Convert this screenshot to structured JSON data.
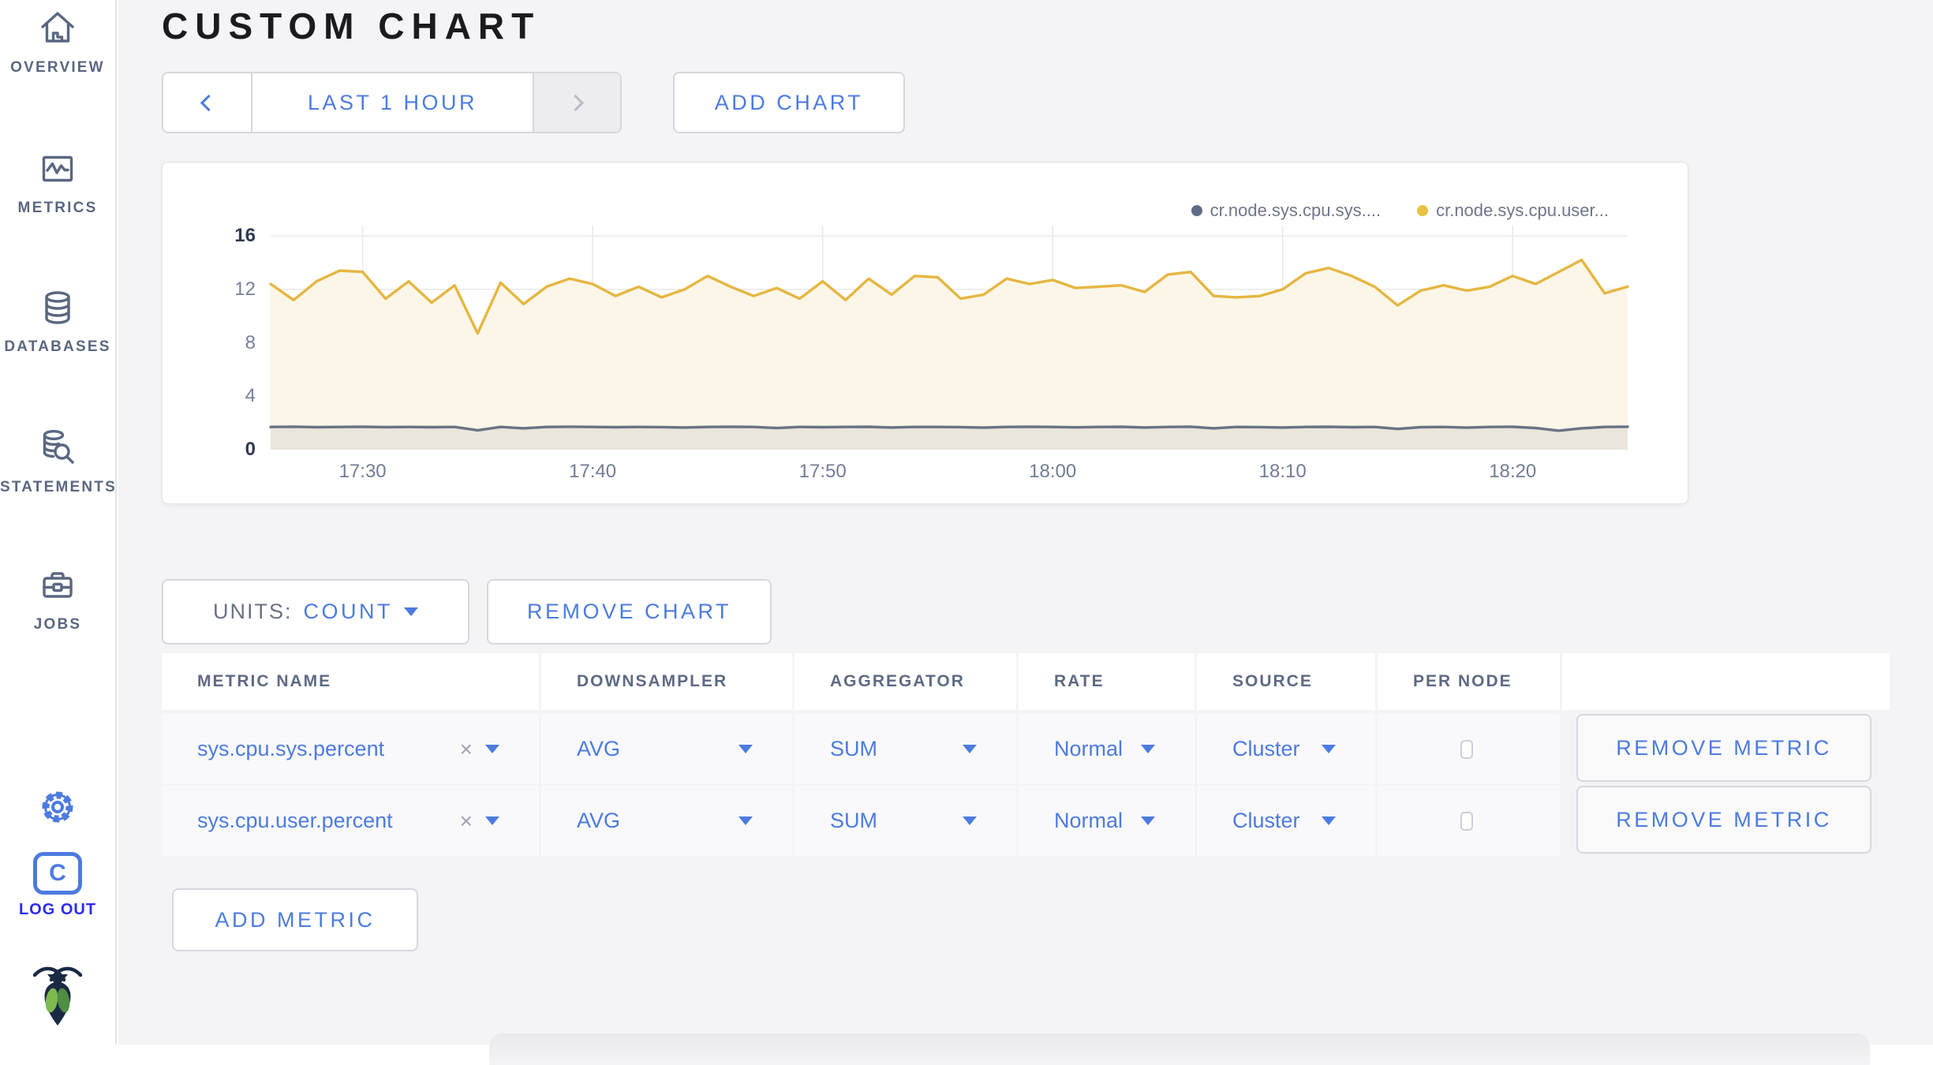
{
  "header": {
    "title": "CUSTOM CHART"
  },
  "sidebar": {
    "items": [
      {
        "label": "OVERVIEW",
        "icon": "home-icon"
      },
      {
        "label": "METRICS",
        "icon": "metrics-icon"
      },
      {
        "label": "DATABASES",
        "icon": "database-icon"
      },
      {
        "label": "STATEMENTS",
        "icon": "statements-icon"
      },
      {
        "label": "JOBS",
        "icon": "jobs-icon"
      }
    ],
    "logout_icon_letter": "C",
    "logout_label": "LOG OUT"
  },
  "time_selector": {
    "range_label": "LAST 1 HOUR"
  },
  "add_chart_label": "ADD CHART",
  "units": {
    "label": "UNITS:",
    "value": "COUNT"
  },
  "remove_chart_label": "REMOVE CHART",
  "add_metric_label": "ADD METRIC",
  "colors": {
    "accent_blue": "#4C7BE0",
    "logout_blue": "#2B2BF2",
    "sidebar_grey": "#5A6780",
    "series_sys": "#6A7384",
    "series_user": "#E5B640",
    "page_bg": "#F4F4F6"
  },
  "chart_data": {
    "type": "line",
    "title": "",
    "ylabel": "",
    "xlabel": "",
    "ylim": [
      0,
      16
    ],
    "y_ticks": [
      0,
      4,
      8,
      12,
      16
    ],
    "x_tick_labels": [
      "17:30",
      "17:40",
      "17:50",
      "18:00",
      "18:10",
      "18:20"
    ],
    "x_tick_indices": [
      4,
      14,
      24,
      34,
      44,
      54
    ],
    "x_range": [
      "17:26",
      "18:25"
    ],
    "grid": true,
    "legend_position": "top-right",
    "legend": [
      {
        "label": "cr.node.sys.cpu.sys....",
        "color": "#5F6C87"
      },
      {
        "label": "cr.node.sys.cpu.user...",
        "color": "#E8C13F"
      }
    ],
    "series": [
      {
        "name": "cr.node.sys.cpu.sys....",
        "color": "#6A7384",
        "fill": "#EAE6DC",
        "values": [
          1.7,
          1.72,
          1.68,
          1.7,
          1.71,
          1.69,
          1.7,
          1.68,
          1.7,
          1.45,
          1.7,
          1.6,
          1.7,
          1.72,
          1.7,
          1.68,
          1.7,
          1.69,
          1.66,
          1.7,
          1.71,
          1.7,
          1.62,
          1.7,
          1.68,
          1.7,
          1.71,
          1.66,
          1.7,
          1.7,
          1.69,
          1.65,
          1.7,
          1.71,
          1.7,
          1.67,
          1.7,
          1.71,
          1.66,
          1.7,
          1.72,
          1.6,
          1.7,
          1.69,
          1.66,
          1.7,
          1.71,
          1.68,
          1.7,
          1.55,
          1.68,
          1.7,
          1.65,
          1.7,
          1.71,
          1.62,
          1.42,
          1.6,
          1.7,
          1.72
        ]
      },
      {
        "name": "cr.node.sys.cpu.user...",
        "color": "#E5B640",
        "fill": "#FBF6E8",
        "values": [
          12.4,
          11.2,
          12.6,
          13.4,
          13.3,
          11.3,
          12.6,
          11.0,
          12.3,
          8.7,
          12.5,
          10.9,
          12.2,
          12.8,
          12.4,
          11.5,
          12.2,
          11.4,
          12.0,
          13.0,
          12.2,
          11.5,
          12.1,
          11.3,
          12.6,
          11.2,
          12.8,
          11.6,
          13.0,
          12.9,
          11.3,
          11.6,
          12.8,
          12.4,
          12.7,
          12.1,
          12.2,
          12.3,
          11.8,
          13.1,
          13.3,
          11.5,
          11.4,
          11.5,
          12.0,
          13.2,
          13.6,
          13.0,
          12.2,
          10.8,
          11.9,
          12.3,
          11.9,
          12.2,
          13.0,
          12.4,
          13.3,
          14.2,
          11.7,
          12.2
        ]
      }
    ]
  },
  "table": {
    "headers": [
      "METRIC NAME",
      "DOWNSAMPLER",
      "AGGREGATOR",
      "RATE",
      "SOURCE",
      "PER NODE",
      ""
    ],
    "remove_glyph": "×",
    "rows": [
      {
        "metric": "sys.cpu.sys.percent",
        "downsampler": "AVG",
        "aggregator": "SUM",
        "rate": "Normal",
        "source": "Cluster",
        "per_node_checked": false,
        "action": "REMOVE METRIC"
      },
      {
        "metric": "sys.cpu.user.percent",
        "downsampler": "AVG",
        "aggregator": "SUM",
        "rate": "Normal",
        "source": "Cluster",
        "per_node_checked": false,
        "action": "REMOVE METRIC"
      }
    ]
  }
}
